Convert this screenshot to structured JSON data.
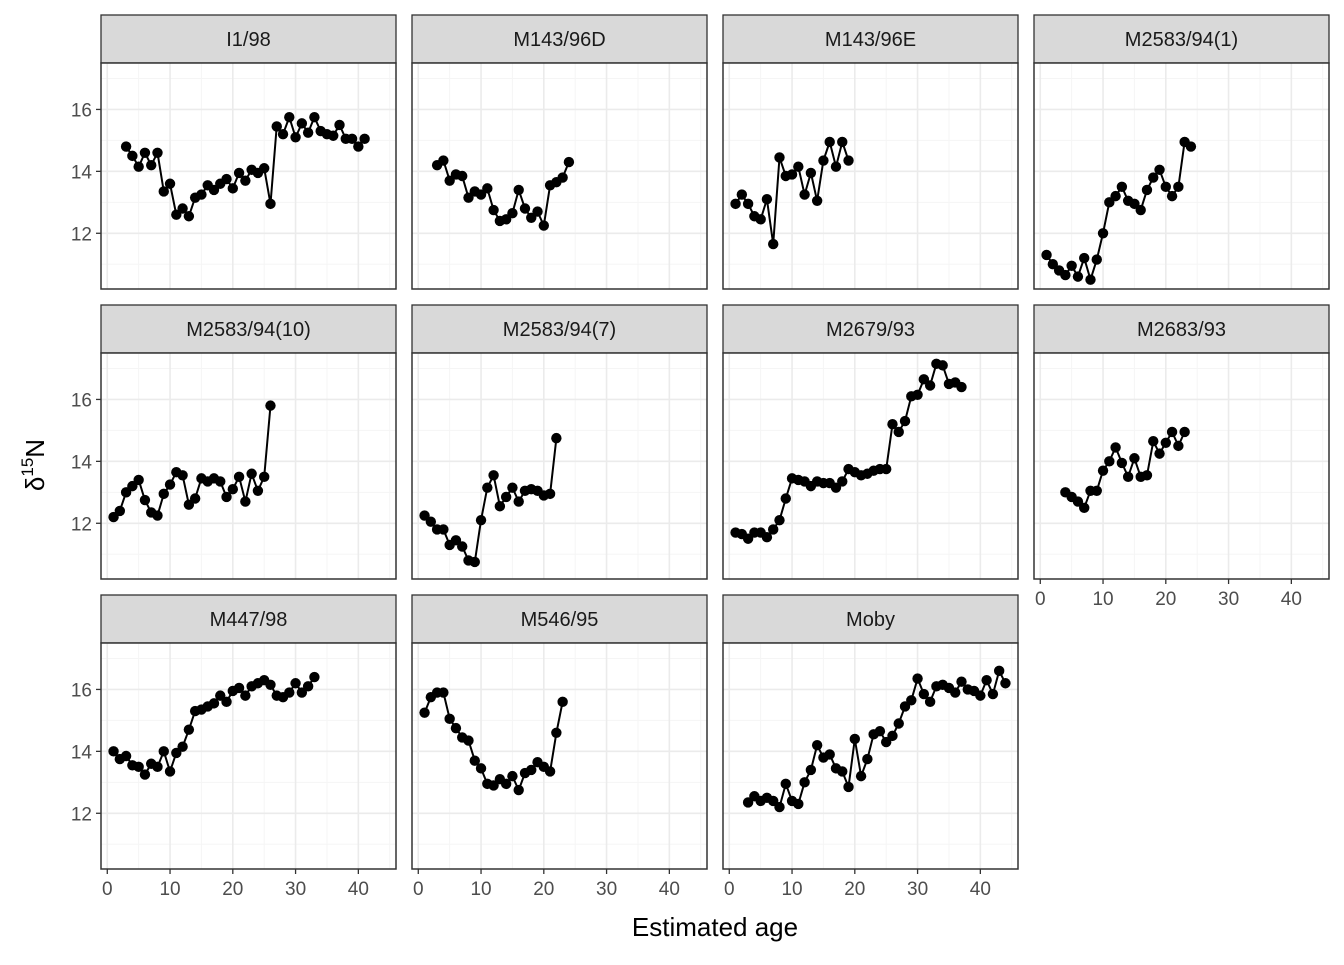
{
  "chart_data": {
    "type": "line",
    "facet_layout": "wrap",
    "xlabel": "Estimated age",
    "ylabel_main": "δ",
    "ylabel_sup": "15",
    "ylabel_tail": "N",
    "xlim": [
      -1,
      46
    ],
    "ylim": [
      10.2,
      17.5
    ],
    "x_ticks": [
      0,
      10,
      20,
      30,
      40
    ],
    "y_ticks": [
      12,
      14,
      16
    ],
    "grid": true,
    "colors": {
      "strip_fill": "#d9d9d9",
      "panel_border": "#333333",
      "grid_major": "#ebebeb",
      "grid_minor": "#f5f5f5",
      "series": "#000000",
      "axis_text": "#4d4d4d"
    },
    "panels": [
      {
        "name": "I1/98",
        "x": [
          3,
          4,
          5,
          6,
          7,
          8,
          9,
          10,
          11,
          12,
          13,
          14,
          15,
          16,
          17,
          18,
          19,
          20,
          21,
          22,
          23,
          24,
          25,
          26,
          27,
          28,
          29,
          30,
          31,
          32,
          33,
          34,
          35,
          36,
          37,
          38,
          39,
          40,
          41
        ],
        "y": [
          14.8,
          14.5,
          14.15,
          14.6,
          14.2,
          14.6,
          13.35,
          13.6,
          12.6,
          12.8,
          12.55,
          13.15,
          13.25,
          13.55,
          13.4,
          13.6,
          13.75,
          13.45,
          13.95,
          13.7,
          14.05,
          13.95,
          14.1,
          12.95,
          15.45,
          15.2,
          15.75,
          15.1,
          15.55,
          15.25,
          15.75,
          15.3,
          15.2,
          15.15,
          15.5,
          15.05,
          15.05,
          14.8,
          15.05
        ]
      },
      {
        "name": "M143/96D",
        "x": [
          3,
          4,
          5,
          6,
          7,
          8,
          9,
          10,
          11,
          12,
          13,
          14,
          15,
          16,
          17,
          18,
          19,
          20,
          21,
          22,
          23,
          24
        ],
        "y": [
          14.2,
          14.35,
          13.7,
          13.9,
          13.85,
          13.15,
          13.35,
          13.25,
          13.45,
          12.75,
          12.4,
          12.45,
          12.65,
          13.4,
          12.8,
          12.5,
          12.7,
          12.25,
          13.55,
          13.65,
          13.8,
          14.3
        ]
      },
      {
        "name": "M143/96E",
        "x": [
          1,
          2,
          3,
          4,
          5,
          6,
          7,
          8,
          9,
          10,
          11,
          12,
          13,
          14,
          15,
          16,
          17,
          18,
          19
        ],
        "y": [
          12.95,
          13.25,
          12.95,
          12.55,
          12.45,
          13.1,
          11.65,
          14.45,
          13.85,
          13.9,
          14.15,
          13.25,
          13.95,
          13.05,
          14.35,
          14.95,
          14.15,
          14.95,
          14.35
        ]
      },
      {
        "name": "M2583/94(1)",
        "x": [
          1,
          2,
          3,
          4,
          5,
          6,
          7,
          8,
          9,
          10,
          11,
          12,
          13,
          14,
          15,
          16,
          17,
          18,
          19,
          20,
          21,
          22,
          23,
          24
        ],
        "y": [
          11.3,
          11.0,
          10.8,
          10.65,
          10.95,
          10.6,
          11.2,
          10.5,
          11.15,
          12.0,
          13.0,
          13.2,
          13.5,
          13.05,
          12.95,
          12.75,
          13.4,
          13.8,
          14.05,
          13.5,
          13.2,
          13.5,
          14.95,
          14.8
        ]
      },
      {
        "name": "M2583/94(10)",
        "x": [
          1,
          2,
          3,
          4,
          5,
          6,
          7,
          8,
          9,
          10,
          11,
          12,
          13,
          14,
          15,
          16,
          17,
          18,
          19,
          20,
          21,
          22,
          23,
          24,
          25,
          26
        ],
        "y": [
          12.2,
          12.4,
          13.0,
          13.2,
          13.4,
          12.75,
          12.35,
          12.25,
          12.95,
          13.25,
          13.65,
          13.55,
          12.6,
          12.8,
          13.45,
          13.35,
          13.45,
          13.35,
          12.85,
          13.1,
          13.5,
          12.7,
          13.6,
          13.05,
          13.5,
          15.8
        ]
      },
      {
        "name": "M2583/94(7)",
        "x": [
          1,
          2,
          3,
          4,
          5,
          6,
          7,
          8,
          9,
          10,
          11,
          12,
          13,
          14,
          15,
          16,
          17,
          18,
          19,
          20,
          21,
          22
        ],
        "y": [
          12.25,
          12.05,
          11.8,
          11.8,
          11.3,
          11.45,
          11.25,
          10.8,
          10.75,
          12.1,
          13.15,
          13.55,
          12.55,
          12.85,
          13.15,
          12.7,
          13.05,
          13.1,
          13.05,
          12.9,
          12.95,
          14.75
        ]
      },
      {
        "name": "M2679/93",
        "x": [
          1,
          2,
          3,
          4,
          5,
          6,
          7,
          8,
          9,
          10,
          11,
          12,
          13,
          14,
          15,
          16,
          17,
          18,
          19,
          20,
          21,
          22,
          23,
          24,
          25,
          26,
          27,
          28,
          29,
          30,
          31,
          32,
          33,
          34,
          35,
          36,
          37
        ],
        "y": [
          11.7,
          11.65,
          11.5,
          11.7,
          11.7,
          11.55,
          11.8,
          12.1,
          12.8,
          13.45,
          13.4,
          13.35,
          13.2,
          13.35,
          13.3,
          13.3,
          13.15,
          13.35,
          13.75,
          13.65,
          13.55,
          13.6,
          13.7,
          13.75,
          13.75,
          15.2,
          14.95,
          15.3,
          16.1,
          16.15,
          16.65,
          16.45,
          17.15,
          17.1,
          16.5,
          16.55,
          16.4
        ]
      },
      {
        "name": "M2683/93",
        "x": [
          4,
          5,
          6,
          7,
          8,
          9,
          10,
          11,
          12,
          13,
          14,
          15,
          16,
          17,
          18,
          19,
          20,
          21,
          22,
          23
        ],
        "y": [
          13.0,
          12.85,
          12.7,
          12.5,
          13.05,
          13.05,
          13.7,
          14.0,
          14.45,
          13.95,
          13.5,
          14.1,
          13.5,
          13.55,
          14.65,
          14.25,
          14.6,
          14.95,
          14.5,
          14.95
        ]
      },
      {
        "name": "M447/98",
        "x": [
          1,
          2,
          3,
          4,
          5,
          6,
          7,
          8,
          9,
          10,
          11,
          12,
          13,
          14,
          15,
          16,
          17,
          18,
          19,
          20,
          21,
          22,
          23,
          24,
          25,
          26,
          27,
          28,
          29,
          30,
          31,
          32,
          33
        ],
        "y": [
          14.0,
          13.75,
          13.85,
          13.55,
          13.5,
          13.25,
          13.6,
          13.5,
          14.0,
          13.35,
          13.95,
          14.15,
          14.7,
          15.3,
          15.35,
          15.45,
          15.55,
          15.8,
          15.6,
          15.95,
          16.05,
          15.8,
          16.1,
          16.2,
          16.3,
          16.15,
          15.8,
          15.75,
          15.9,
          16.2,
          15.9,
          16.1,
          16.4
        ]
      },
      {
        "name": "M546/95",
        "x": [
          1,
          2,
          3,
          4,
          5,
          6,
          7,
          8,
          9,
          10,
          11,
          12,
          13,
          14,
          15,
          16,
          17,
          18,
          19,
          20,
          21,
          22,
          23
        ],
        "y": [
          15.25,
          15.75,
          15.9,
          15.9,
          15.05,
          14.75,
          14.45,
          14.35,
          13.7,
          13.45,
          12.95,
          12.9,
          13.1,
          12.95,
          13.2,
          12.75,
          13.3,
          13.4,
          13.65,
          13.5,
          13.35,
          14.6,
          15.6
        ]
      },
      {
        "name": "Moby",
        "x": [
          3,
          4,
          5,
          6,
          7,
          8,
          9,
          10,
          11,
          12,
          13,
          14,
          15,
          16,
          17,
          18,
          19,
          20,
          21,
          22,
          23,
          24,
          25,
          26,
          27,
          28,
          29,
          30,
          31,
          32,
          33,
          34,
          35,
          36,
          37,
          38,
          39,
          40,
          41,
          42,
          43,
          44
        ],
        "y": [
          12.35,
          12.55,
          12.4,
          12.5,
          12.4,
          12.2,
          12.95,
          12.4,
          12.3,
          13.0,
          13.4,
          14.2,
          13.8,
          13.9,
          13.45,
          13.35,
          12.85,
          14.4,
          13.2,
          13.75,
          14.55,
          14.65,
          14.3,
          14.5,
          14.9,
          15.45,
          15.65,
          16.35,
          15.85,
          15.6,
          16.1,
          16.15,
          16.05,
          15.9,
          16.25,
          16.0,
          15.95,
          15.8,
          16.3,
          15.85,
          16.6,
          16.2
        ]
      }
    ]
  }
}
